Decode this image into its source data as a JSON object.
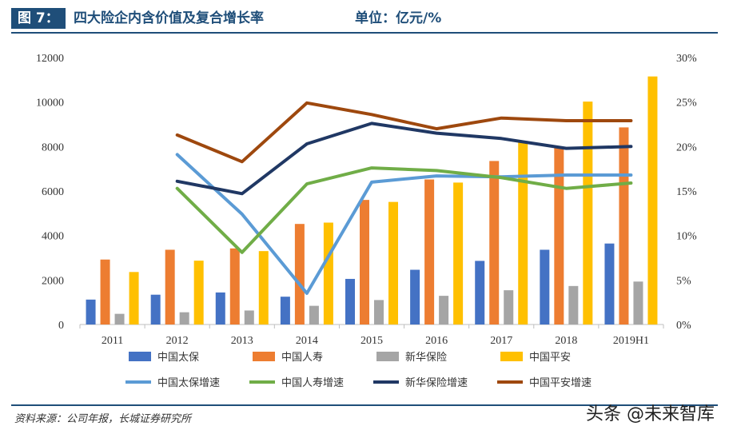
{
  "header": {
    "label": "图 7：",
    "title": "四大险企内含价值及复合增长率",
    "unit": "单位：亿元/%"
  },
  "footer": {
    "source": "资料来源：公司年报，长城证券研究所",
    "watermark": "头条 @未来智库"
  },
  "colors": {
    "brand": "#1f4e79",
    "cpic": "#4472c4",
    "chinalife": "#ed7d31",
    "nci": "#a5a5a5",
    "pingan": "#ffc000",
    "cpic_growth": "#5b9bd5",
    "chinalife_growth": "#70ad47",
    "nci_growth": "#203864",
    "pingan_growth": "#9e480e"
  },
  "chart_data": {
    "type": "bar",
    "categories": [
      "2011",
      "2012",
      "2013",
      "2014",
      "2015",
      "2016",
      "2017",
      "2018",
      "2019H1"
    ],
    "y_left": {
      "ylim": [
        0,
        12000
      ],
      "ticks": [
        "0",
        "2000",
        "4000",
        "6000",
        "8000",
        "10000",
        "12000"
      ]
    },
    "y_right": {
      "ylim": [
        0,
        30
      ],
      "ticks": [
        "0%",
        "5%",
        "10%",
        "15%",
        "20%",
        "25%",
        "30%"
      ]
    },
    "series": [
      {
        "name": "中国太保",
        "type": "bar",
        "axis": "left",
        "color": "#4472c4",
        "values": [
          1120,
          1340,
          1440,
          1250,
          2050,
          2460,
          2860,
          3360,
          3640
        ]
      },
      {
        "name": "中国人寿",
        "type": "bar",
        "axis": "left",
        "color": "#ed7d31",
        "values": [
          2920,
          3360,
          3420,
          4520,
          5600,
          6520,
          7350,
          7950,
          8860
        ]
      },
      {
        "name": "新华保险",
        "type": "bar",
        "axis": "left",
        "color": "#a5a5a5",
        "values": [
          480,
          550,
          630,
          840,
          1100,
          1290,
          1540,
          1730,
          1930
        ]
      },
      {
        "name": "中国平安",
        "type": "bar",
        "axis": "left",
        "color": "#ffc000",
        "values": [
          2360,
          2870,
          3300,
          4580,
          5510,
          6380,
          8250,
          10020,
          11150
        ]
      },
      {
        "name": "中国太保增速",
        "type": "line",
        "axis": "right",
        "color": "#5b9bd5",
        "values": [
          null,
          19.1,
          12.4,
          3.5,
          16.0,
          16.7,
          16.6,
          16.8,
          16.8
        ]
      },
      {
        "name": "中国人寿增速",
        "type": "line",
        "axis": "right",
        "color": "#70ad47",
        "values": [
          null,
          15.3,
          8.1,
          15.8,
          17.6,
          17.3,
          16.5,
          15.3,
          15.9
        ]
      },
      {
        "name": "新华保险增速",
        "type": "line",
        "axis": "right",
        "color": "#203864",
        "values": [
          null,
          16.1,
          14.7,
          20.3,
          22.6,
          21.5,
          20.9,
          19.8,
          20.0
        ]
      },
      {
        "name": "中国平安增速",
        "type": "line",
        "axis": "right",
        "color": "#9e480e",
        "values": [
          null,
          21.3,
          18.3,
          24.9,
          23.6,
          22.0,
          23.2,
          22.9,
          22.9
        ]
      }
    ]
  }
}
